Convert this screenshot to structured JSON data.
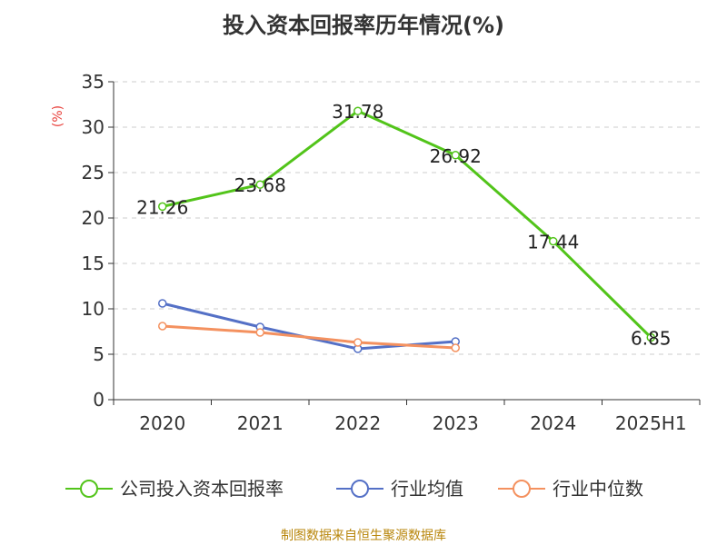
{
  "chart_data": {
    "type": "line",
    "title": "投入资本回报率历年情况(%)",
    "ylabel": "(%)",
    "xlabel": "",
    "ylim": [
      0,
      35
    ],
    "yticks": [
      0,
      5,
      10,
      15,
      20,
      25,
      30,
      35
    ],
    "grid": true,
    "legend_position": "bottom",
    "categories": [
      "2020",
      "2021",
      "2022",
      "2023",
      "2024",
      "2025H1"
    ],
    "series": [
      {
        "name": "公司投入资本回报率",
        "color": "#52c41a",
        "values": [
          21.26,
          23.68,
          31.78,
          26.92,
          17.44,
          6.85
        ],
        "labels": [
          "21.26",
          "23.68",
          "31.78",
          "26.92",
          "17.44",
          "6.85"
        ]
      },
      {
        "name": "行业均值",
        "color": "#5470c6",
        "values": [
          10.6,
          8.0,
          5.6,
          6.4,
          null,
          null
        ]
      },
      {
        "name": "行业中位数",
        "color": "#f4915f",
        "values": [
          8.1,
          7.4,
          6.3,
          5.7,
          null,
          null
        ]
      }
    ]
  },
  "source": "制图数据来自恒生聚源数据库"
}
